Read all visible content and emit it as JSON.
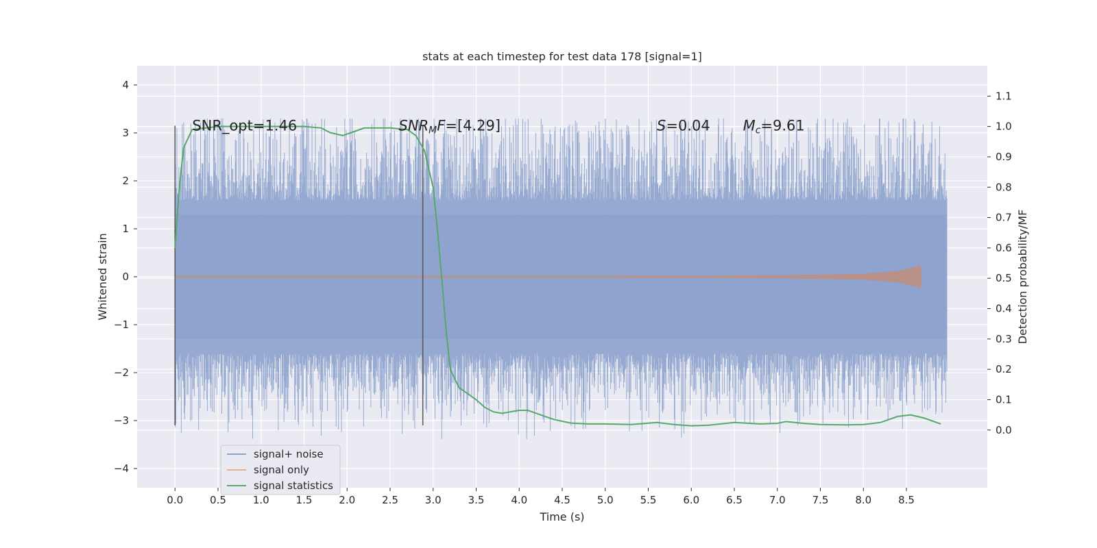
{
  "chart_data": {
    "type": "line",
    "title": "stats at each timestep for test data 178 [signal=1]",
    "xlabel": "Time (s)",
    "ylabel": "Whitened strain",
    "y2label": "Detection probability/MF",
    "xlim": [
      -0.44,
      9.44
    ],
    "ylim": [
      -4.4,
      4.4
    ],
    "y2lim": [
      -0.19,
      1.2
    ],
    "x_ticks": [
      0.0,
      0.5,
      1.0,
      1.5,
      2.0,
      2.5,
      3.0,
      3.5,
      4.0,
      4.5,
      5.0,
      5.5,
      6.0,
      6.5,
      7.0,
      7.5,
      8.0,
      8.5
    ],
    "x_tick_labels": [
      "0.0",
      "0.5",
      "1.0",
      "1.5",
      "2.0",
      "2.5",
      "3.0",
      "3.5",
      "4.0",
      "4.5",
      "5.0",
      "5.5",
      "6.0",
      "6.5",
      "7.0",
      "7.5",
      "8.0",
      "8.5"
    ],
    "y_ticks": [
      -4,
      -3,
      -2,
      -1,
      0,
      1,
      2,
      3,
      4
    ],
    "y_tick_labels": [
      "−4",
      "−3",
      "−2",
      "−1",
      "0",
      "1",
      "2",
      "3",
      "4"
    ],
    "y2_ticks": [
      0.0,
      0.1,
      0.2,
      0.3,
      0.4,
      0.5,
      0.6,
      0.7,
      0.8,
      0.9,
      1.0,
      1.1
    ],
    "y2_tick_labels": [
      "0.0",
      "0.1",
      "0.2",
      "0.3",
      "0.4",
      "0.5",
      "0.6",
      "0.7",
      "0.8",
      "0.9",
      "1.0",
      "1.1"
    ],
    "grid": true,
    "legend_position": "lower-left",
    "x_range_data": [
      0.0,
      8.97
    ],
    "noise_envelope": {
      "core_amplitude": 1.3,
      "peak_amplitude": 3.3,
      "min_amplitude": -3.8
    },
    "series": [
      {
        "name": "signal+ noise",
        "color": "#8da2cc",
        "kind": "noise"
      },
      {
        "name": "signal only",
        "color": "#dd8452",
        "kind": "chirp",
        "chirp_points": [
          [
            0.0,
            0.02
          ],
          [
            5.0,
            0.02
          ],
          [
            7.0,
            0.03
          ],
          [
            8.0,
            0.06
          ],
          [
            8.4,
            0.12
          ],
          [
            8.6,
            0.2
          ],
          [
            8.66,
            0.25
          ],
          [
            8.68,
            0.0
          ]
        ]
      },
      {
        "name": "signal statistics",
        "color": "#55a868",
        "kind": "line",
        "axis": "right",
        "points": [
          [
            0.0,
            0.6
          ],
          [
            0.05,
            0.8
          ],
          [
            0.1,
            0.93
          ],
          [
            0.2,
            0.99
          ],
          [
            0.5,
            1.0
          ],
          [
            1.0,
            1.0
          ],
          [
            1.5,
            1.0
          ],
          [
            1.7,
            0.995
          ],
          [
            1.8,
            0.98
          ],
          [
            1.95,
            0.97
          ],
          [
            2.05,
            0.98
          ],
          [
            2.2,
            0.995
          ],
          [
            2.5,
            0.995
          ],
          [
            2.7,
            0.99
          ],
          [
            2.8,
            0.97
          ],
          [
            2.9,
            0.92
          ],
          [
            3.0,
            0.8
          ],
          [
            3.05,
            0.66
          ],
          [
            3.1,
            0.5
          ],
          [
            3.15,
            0.33
          ],
          [
            3.2,
            0.2
          ],
          [
            3.3,
            0.14
          ],
          [
            3.4,
            0.12
          ],
          [
            3.5,
            0.1
          ],
          [
            3.6,
            0.075
          ],
          [
            3.7,
            0.06
          ],
          [
            3.8,
            0.055
          ],
          [
            4.0,
            0.065
          ],
          [
            4.1,
            0.065
          ],
          [
            4.2,
            0.055
          ],
          [
            4.4,
            0.035
          ],
          [
            4.6,
            0.023
          ],
          [
            4.8,
            0.02
          ],
          [
            5.0,
            0.02
          ],
          [
            5.3,
            0.018
          ],
          [
            5.6,
            0.025
          ],
          [
            5.8,
            0.018
          ],
          [
            6.0,
            0.014
          ],
          [
            6.2,
            0.016
          ],
          [
            6.5,
            0.025
          ],
          [
            6.8,
            0.02
          ],
          [
            7.0,
            0.022
          ],
          [
            7.1,
            0.028
          ],
          [
            7.3,
            0.022
          ],
          [
            7.5,
            0.018
          ],
          [
            7.8,
            0.017
          ],
          [
            8.0,
            0.018
          ],
          [
            8.2,
            0.025
          ],
          [
            8.4,
            0.045
          ],
          [
            8.55,
            0.05
          ],
          [
            8.7,
            0.04
          ],
          [
            8.8,
            0.03
          ],
          [
            8.9,
            0.02
          ]
        ]
      }
    ],
    "vertical_lines": [
      {
        "x": 0.0,
        "y_from": -3.1,
        "y_to": 3.15
      },
      {
        "x": 2.88,
        "y_from": -3.1,
        "y_to": 3.15
      }
    ],
    "annotations": [
      {
        "x": 0.2,
        "y": 3.05,
        "segments": [
          {
            "text": "SNR_opt=1.46"
          }
        ]
      },
      {
        "x": 2.6,
        "y": 3.05,
        "segments": [
          {
            "text": "SNR",
            "italic": true
          },
          {
            "text": "M",
            "italic": true,
            "sub": true
          },
          {
            "text": "F",
            "italic": true
          },
          {
            "text": "=[4.29]"
          }
        ]
      },
      {
        "x": 5.6,
        "y": 3.05,
        "segments": [
          {
            "text": "S",
            "italic": true
          },
          {
            "text": "=0.04"
          }
        ]
      },
      {
        "x": 6.6,
        "y": 3.05,
        "segments": [
          {
            "text": "M",
            "italic": true
          },
          {
            "text": "c",
            "italic": true,
            "sub": true
          },
          {
            "text": "=9.61"
          }
        ]
      }
    ]
  }
}
